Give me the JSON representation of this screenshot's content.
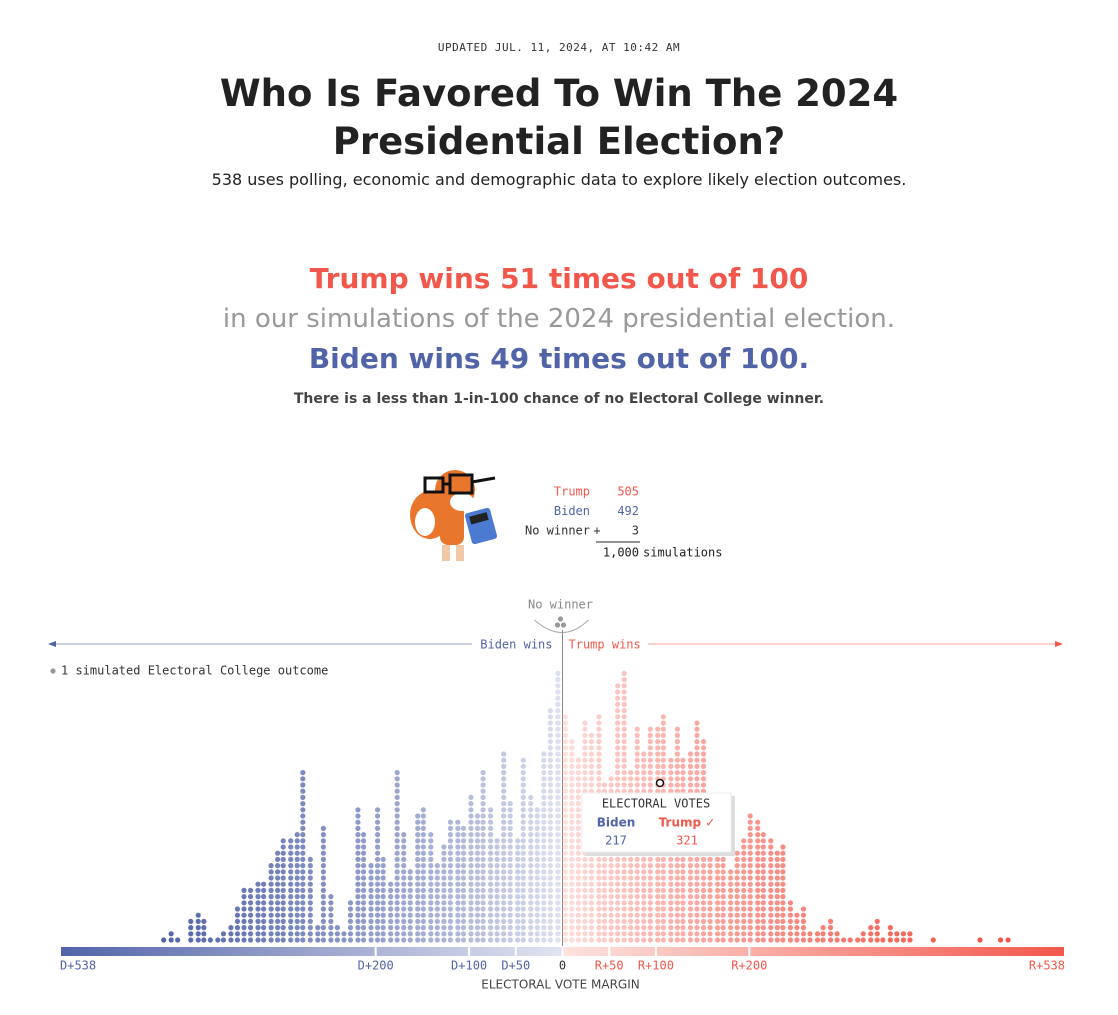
{
  "header": {
    "updated": "UPDATED JUL. 11, 2024, AT 10:42 AM",
    "title": "Who Is Favored To Win The 2024 Presidential Election?",
    "subtitle": "538 uses polling, economic and demographic data to explore likely election outcomes."
  },
  "headline": {
    "trump": "Trump wins 51 times out of 100",
    "middle": "in our simulations of the 2024 presidential election.",
    "biden": "Biden wins 49 times out of 100.",
    "note": "There is a less than 1-in-100 chance of no Electoral College winner."
  },
  "summary": {
    "rows": [
      {
        "name": "Trump",
        "value": 505
      },
      {
        "name": "Biden",
        "value": 492
      },
      {
        "name": "No winner",
        "prefix": "+",
        "value": 3
      }
    ],
    "total": "1,000",
    "total_label": "simulations"
  },
  "chart_data": {
    "type": "dotplot",
    "legend": "1 simulated Electoral College outcome",
    "no_winner_label": "No winner",
    "left_label": "Biden wins",
    "right_label": "Trump wins",
    "xlabel": "ELECTORAL VOTE MARGIN",
    "xlim": [
      -538,
      538
    ],
    "xticks": [
      {
        "value": -538,
        "label": "D+538"
      },
      {
        "value": -200,
        "label": "D+200"
      },
      {
        "value": -100,
        "label": "D+100"
      },
      {
        "value": -50,
        "label": "D+50"
      },
      0,
      {
        "value": 50,
        "label": "R+50"
      },
      {
        "value": 100,
        "label": "R+100"
      },
      {
        "value": 200,
        "label": "R+200"
      },
      {
        "value": 538,
        "label": "R+538"
      }
    ],
    "colors": {
      "biden": "#5264a8",
      "trump": "#f2574b",
      "biden_light": "#e1e4f2",
      "trump_light": "#fde3df",
      "none": "#999999"
    },
    "x": [
      -427,
      -419,
      -412,
      -398,
      -390,
      -384,
      -377,
      -369,
      -363,
      -355,
      -348,
      -341,
      -334,
      -326,
      -320,
      -312,
      -305,
      -299,
      -291,
      -284,
      -278,
      -270,
      -262,
      -256,
      -248,
      -241,
      -234,
      -227,
      -219,
      -213,
      -205,
      -198,
      -192,
      -184,
      -177,
      -170,
      -163,
      -155,
      -149,
      -141,
      -134,
      -127,
      -120,
      -112,
      -106,
      -98,
      -91,
      -85,
      -77,
      -70,
      -63,
      -56,
      -48,
      -42,
      -34,
      -27,
      -20,
      -13,
      -5,
      3,
      10,
      17,
      24,
      31,
      39,
      45,
      52,
      59,
      66,
      73,
      80,
      87,
      94,
      102,
      108,
      116,
      123,
      129,
      137,
      144,
      151,
      158,
      166,
      172,
      180,
      187,
      194,
      201,
      209,
      215,
      223,
      230,
      236,
      244,
      251,
      258,
      265,
      273,
      279,
      287,
      294,
      301,
      308,
      316,
      322,
      330,
      337,
      343,
      351,
      358,
      365,
      372,
      397,
      447,
      469,
      477
    ],
    "counts": [
      1,
      2,
      1,
      4,
      5,
      4,
      1,
      1,
      2,
      3,
      6,
      9,
      9,
      10,
      10,
      13,
      15,
      17,
      17,
      18,
      28,
      14,
      3,
      19,
      8,
      3,
      2,
      7,
      22,
      18,
      13,
      22,
      14,
      10,
      28,
      18,
      12,
      21,
      22,
      18,
      13,
      16,
      20,
      20,
      19,
      24,
      21,
      28,
      22,
      17,
      31,
      23,
      17,
      30,
      24,
      22,
      31,
      38,
      44,
      37,
      33,
      30,
      36,
      34,
      37,
      26,
      27,
      42,
      44,
      28,
      35,
      31,
      35,
      35,
      37,
      30,
      35,
      30,
      31,
      36,
      33,
      18,
      14,
      15,
      12,
      15,
      17,
      21,
      20,
      18,
      17,
      15,
      16,
      7,
      5,
      6,
      2,
      2,
      3,
      4,
      2,
      1,
      1,
      1,
      2,
      3,
      4,
      1,
      3,
      2,
      2,
      2,
      1,
      1,
      1,
      1
    ],
    "tooltip": {
      "title": "ELECTORAL VOTES",
      "biden_label": "Biden",
      "biden_value": 217,
      "trump_label": "Trump ✓",
      "trump_value": 321
    }
  }
}
